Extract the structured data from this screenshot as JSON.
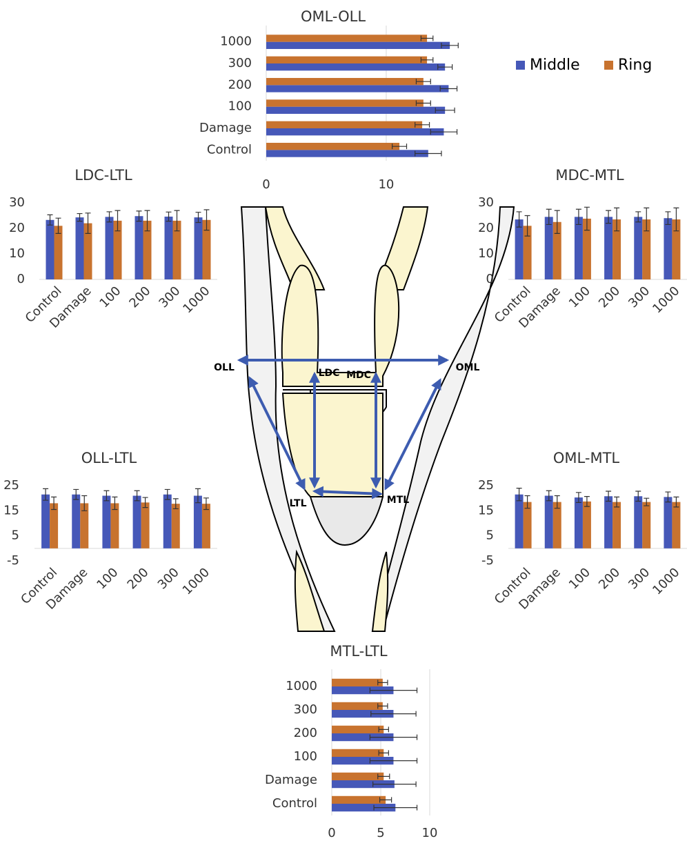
{
  "chart_data": [
    {
      "type": "bar",
      "orientation": "horizontal",
      "title": "OML-OLL",
      "categories": [
        "Control",
        "Damage",
        "100",
        "200",
        "300",
        "1000"
      ],
      "series": [
        {
          "name": "Middle",
          "color": "#4658b8",
          "values": [
            13.5,
            14.8,
            14.9,
            15.2,
            14.9,
            15.3
          ],
          "errors": [
            1.1,
            1.1,
            0.8,
            0.7,
            0.6,
            0.7
          ]
        },
        {
          "name": "Ring",
          "color": "#c8732f",
          "values": [
            11.1,
            13.0,
            13.1,
            13.1,
            13.4,
            13.4
          ],
          "errors": [
            0.6,
            0.6,
            0.6,
            0.6,
            0.5,
            0.5
          ]
        }
      ],
      "xlim": [
        0,
        16.5
      ],
      "xticks": [
        0,
        10
      ]
    },
    {
      "type": "bar",
      "orientation": "vertical",
      "title": "LDC-LTL",
      "categories": [
        "Control",
        "Damage",
        "100",
        "200",
        "300",
        "1000"
      ],
      "series": [
        {
          "color": "#4658b8",
          "values": [
            23.3,
            24.3,
            24.5,
            24.8,
            24.6,
            24.3
          ],
          "errors": [
            2,
            1.5,
            2,
            2,
            1.8,
            2
          ]
        },
        {
          "color": "#c8732f",
          "values": [
            21,
            22,
            23,
            23,
            23,
            23.3
          ],
          "errors": [
            3,
            4,
            4,
            4,
            4,
            4
          ]
        }
      ],
      "ylim": [
        0,
        30
      ],
      "yticks": [
        0,
        10,
        20,
        30
      ]
    },
    {
      "type": "bar",
      "orientation": "vertical",
      "title": "MDC-MTL",
      "categories": [
        "Control",
        "Damage",
        "100",
        "200",
        "300",
        "1000"
      ],
      "series": [
        {
          "color": "#4658b8",
          "values": [
            23.5,
            24.5,
            24.5,
            24.5,
            24.5,
            24
          ],
          "errors": [
            3,
            3,
            3,
            2.5,
            2,
            2.5
          ]
        },
        {
          "color": "#c8732f",
          "values": [
            21,
            22.5,
            23.8,
            23.5,
            23.5,
            23.5
          ],
          "errors": [
            4,
            4.5,
            4.5,
            4.5,
            4.5,
            4.5
          ]
        }
      ],
      "ylim": [
        0,
        30
      ],
      "yticks": [
        0,
        10,
        20,
        30
      ]
    },
    {
      "type": "bar",
      "orientation": "vertical",
      "title": "OLL-LTL",
      "categories": [
        "Control",
        "Damage",
        "100",
        "200",
        "300",
        "1000"
      ],
      "series": [
        {
          "color": "#4658b8",
          "values": [
            21.5,
            21.5,
            21,
            21,
            21.5,
            21
          ],
          "errors": [
            2.3,
            2,
            2,
            2,
            2,
            2.8
          ]
        },
        {
          "color": "#c8732f",
          "values": [
            18,
            18,
            18,
            18.3,
            17.8,
            17.8
          ],
          "errors": [
            2.5,
            3,
            2.5,
            2,
            2,
            2.3
          ]
        }
      ],
      "ylim": [
        -5,
        25
      ],
      "yticks": [
        -5,
        5,
        15,
        25
      ]
    },
    {
      "type": "bar",
      "orientation": "vertical",
      "title": "OML-MTL",
      "categories": [
        "Control",
        "Damage",
        "100",
        "200",
        "300",
        "1000"
      ],
      "series": [
        {
          "color": "#4658b8",
          "values": [
            21.5,
            21,
            20.3,
            20.8,
            20.8,
            20.5
          ],
          "errors": [
            2.5,
            2,
            2,
            2,
            2,
            2
          ]
        },
        {
          "color": "#c8732f",
          "values": [
            18.5,
            18.5,
            18.7,
            18.5,
            18.5,
            18.5
          ],
          "errors": [
            2.5,
            2.5,
            2,
            2,
            1.5,
            2
          ]
        }
      ],
      "ylim": [
        -5,
        25
      ],
      "yticks": [
        -5,
        5,
        15,
        25
      ]
    },
    {
      "type": "bar",
      "orientation": "horizontal",
      "title": "MTL-LTL",
      "categories": [
        "Control",
        "Damage",
        "100",
        "200",
        "300",
        "1000"
      ],
      "series": [
        {
          "color": "#4658b8",
          "values": [
            6.5,
            6.4,
            6.3,
            6.3,
            6.3,
            6.3
          ],
          "errors": [
            2.2,
            2.2,
            2.4,
            2.4,
            2.3,
            2.4
          ]
        },
        {
          "color": "#c8732f",
          "values": [
            5.5,
            5.3,
            5.3,
            5.3,
            5.2,
            5.2
          ],
          "errors": [
            0.6,
            0.6,
            0.5,
            0.5,
            0.5,
            0.5
          ]
        }
      ],
      "xlim": [
        0,
        10
      ],
      "xticks": [
        0,
        5,
        10
      ]
    }
  ],
  "diagram": {
    "labels": [
      "OLL",
      "LDC",
      "MDC",
      "OML",
      "LTL",
      "MTL"
    ]
  }
}
